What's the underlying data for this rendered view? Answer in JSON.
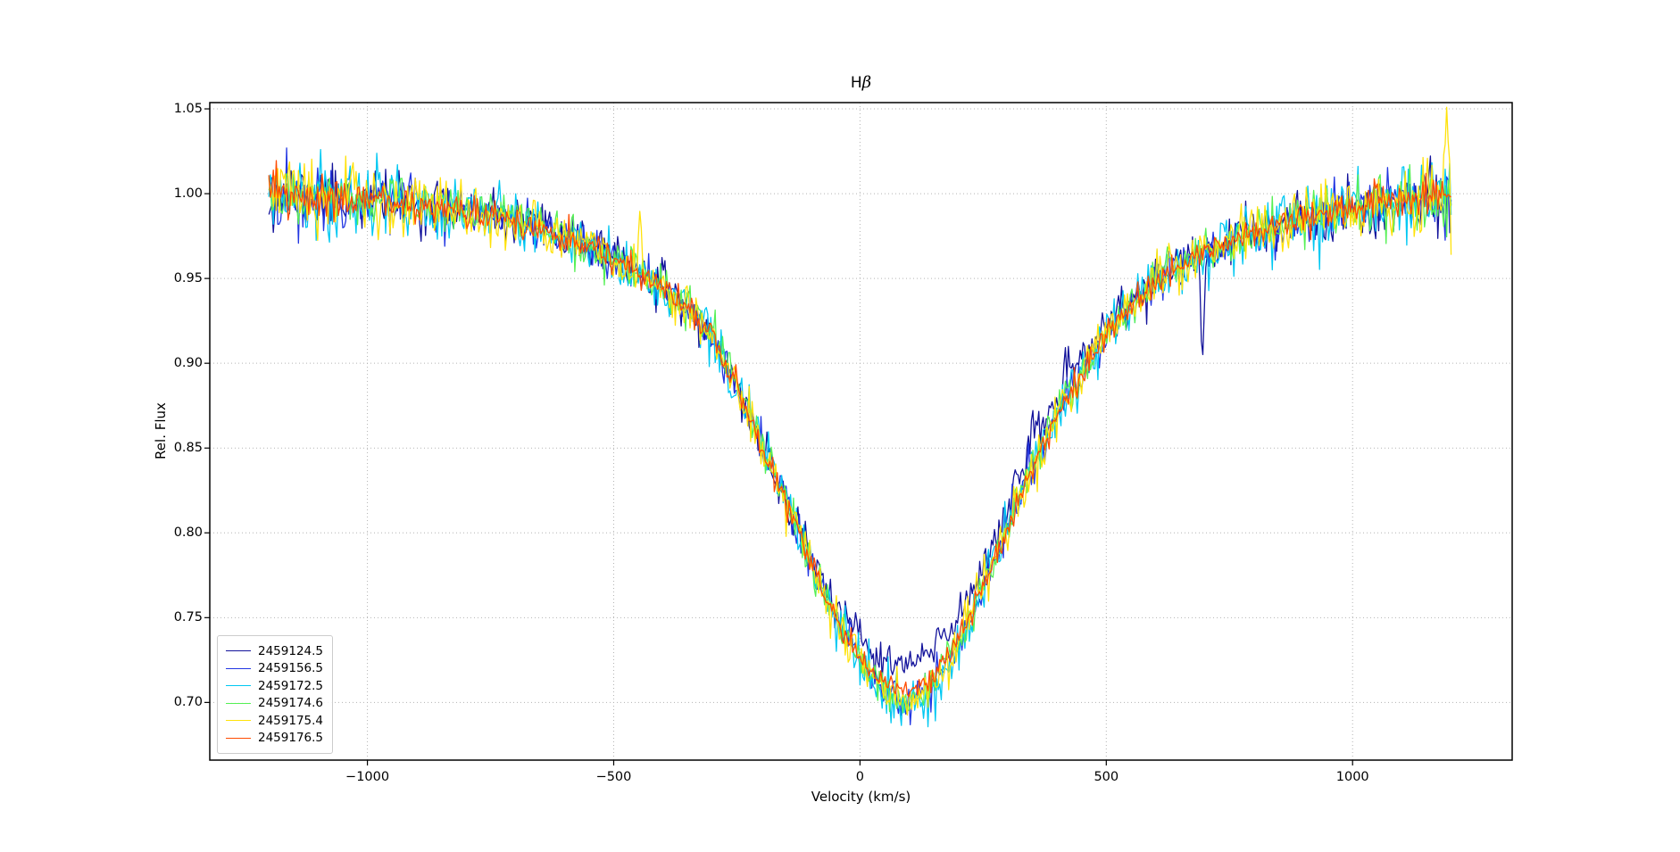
{
  "chart_data": {
    "type": "line",
    "title": "Hβ",
    "title_parts": {
      "prefix": "H",
      "beta": "β"
    },
    "xlabel": "Velocity (km/s)",
    "ylabel": "Rel. Flux",
    "xlim": [
      -1320,
      1324
    ],
    "ylim": [
      0.666,
      1.0537
    ],
    "x_ticks": [
      {
        "v": -1000,
        "label": "−1000"
      },
      {
        "v": -500,
        "label": "−500"
      },
      {
        "v": 0,
        "label": "0"
      },
      {
        "v": 500,
        "label": "500"
      },
      {
        "v": 1000,
        "label": "1000"
      }
    ],
    "y_ticks": [
      {
        "v": 0.7,
        "label": "0.70"
      },
      {
        "v": 0.75,
        "label": "0.75"
      },
      {
        "v": 0.8,
        "label": "0.80"
      },
      {
        "v": 0.85,
        "label": "0.85"
      },
      {
        "v": 0.9,
        "label": "0.90"
      },
      {
        "v": 0.95,
        "label": "0.95"
      },
      {
        "v": 1.0,
        "label": "1.00"
      },
      {
        "v": 1.05,
        "label": "1.05"
      }
    ],
    "grid": {
      "visible": true,
      "style": "dotted",
      "color": "#b3b3b3"
    },
    "legend": {
      "position": "lower left"
    },
    "velocity_range": [
      -1200,
      1200
    ],
    "sample_step_kms": 3,
    "noise_edge_boost": 0.6,
    "base_profile": [
      [
        -1200,
        0.999
      ],
      [
        -1100,
        0.998
      ],
      [
        -1000,
        0.997
      ],
      [
        -900,
        0.994
      ],
      [
        -800,
        0.99
      ],
      [
        -700,
        0.983
      ],
      [
        -600,
        0.975
      ],
      [
        -550,
        0.969
      ],
      [
        -500,
        0.962
      ],
      [
        -450,
        0.953
      ],
      [
        -400,
        0.944
      ],
      [
        -350,
        0.933
      ],
      [
        -300,
        0.916
      ],
      [
        -250,
        0.886
      ],
      [
        -200,
        0.853
      ],
      [
        -150,
        0.818
      ],
      [
        -100,
        0.783
      ],
      [
        -50,
        0.749
      ],
      [
        0,
        0.724
      ],
      [
        50,
        0.708
      ],
      [
        100,
        0.704
      ],
      [
        150,
        0.712
      ],
      [
        200,
        0.735
      ],
      [
        250,
        0.768
      ],
      [
        300,
        0.803
      ],
      [
        350,
        0.84
      ],
      [
        400,
        0.869
      ],
      [
        450,
        0.894
      ],
      [
        500,
        0.917
      ],
      [
        550,
        0.934
      ],
      [
        600,
        0.948
      ],
      [
        650,
        0.958
      ],
      [
        700,
        0.966
      ],
      [
        750,
        0.972
      ],
      [
        800,
        0.977
      ],
      [
        850,
        0.981
      ],
      [
        900,
        0.985
      ],
      [
        950,
        0.988
      ],
      [
        1000,
        0.991
      ],
      [
        1100,
        0.996
      ],
      [
        1200,
        0.999
      ]
    ],
    "series": [
      {
        "name": "2459124.5",
        "color": "#12129b",
        "noise": 0.0062,
        "seed": 11,
        "delta": [
          [
            -150,
            0
          ],
          [
            -100,
            0.004
          ],
          [
            -50,
            0.007
          ],
          [
            0,
            0.012
          ],
          [
            50,
            0.015
          ],
          [
            100,
            0.018
          ],
          [
            150,
            0.018
          ],
          [
            200,
            0.016
          ],
          [
            250,
            0.013
          ],
          [
            300,
            0.013
          ],
          [
            350,
            0.013
          ],
          [
            400,
            0.011
          ],
          [
            450,
            0.009
          ],
          [
            500,
            0.006
          ],
          [
            550,
            0.003
          ],
          [
            620,
            0
          ]
        ],
        "artifacts": [
          {
            "v": 695,
            "dflux": -0.055,
            "width": 4
          }
        ]
      },
      {
        "name": "2459156.5",
        "color": "#2236e2",
        "noise": 0.0058,
        "seed": 22,
        "delta": [
          [
            0,
            0
          ],
          [
            50,
            -0.002
          ],
          [
            100,
            -0.003
          ],
          [
            150,
            -0.002
          ],
          [
            200,
            0
          ]
        ],
        "artifacts": []
      },
      {
        "name": "2459172.5",
        "color": "#00c8f2",
        "noise": 0.0078,
        "seed": 33,
        "delta": [
          [
            -50,
            0
          ],
          [
            0,
            -0.002
          ],
          [
            50,
            -0.005
          ],
          [
            100,
            -0.007
          ],
          [
            150,
            -0.005
          ],
          [
            200,
            -0.002
          ],
          [
            250,
            0
          ]
        ],
        "artifacts": []
      },
      {
        "name": "2459174.6",
        "color": "#55f055",
        "noise": 0.0058,
        "seed": 44,
        "delta": [],
        "artifacts": []
      },
      {
        "name": "2459175.4",
        "color": "#ffe20a",
        "noise": 0.0072,
        "seed": 55,
        "delta": [
          [
            0,
            0
          ],
          [
            50,
            -0.003
          ],
          [
            100,
            -0.004
          ],
          [
            150,
            -0.002
          ],
          [
            200,
            0
          ]
        ],
        "artifacts": [
          {
            "v": -446,
            "dflux": 0.03,
            "width": 4
          },
          {
            "v": 1190,
            "dflux": 0.038,
            "width": 4
          }
        ]
      },
      {
        "name": "2459176.5",
        "color": "#ff4b00",
        "noise": 0.0038,
        "seed": 66,
        "delta": [
          [
            -80,
            0
          ],
          [
            0,
            0.002
          ],
          [
            50,
            0.004
          ],
          [
            100,
            0.004
          ],
          [
            150,
            0.003
          ],
          [
            250,
            0
          ]
        ],
        "artifacts": []
      }
    ]
  }
}
